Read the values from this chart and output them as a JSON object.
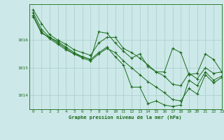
{
  "background_color": "#cce8e8",
  "grid_color": "#aacccc",
  "line_color": "#1a6b1a",
  "marker_color": "#1a6b1a",
  "title": "Graphe pression niveau de la mer (hPa)",
  "xlim": [
    -0.5,
    23
  ],
  "ylim": [
    1013.5,
    1017.3
  ],
  "yticks": [
    1014,
    1015,
    1016
  ],
  "xticks": [
    0,
    1,
    2,
    3,
    4,
    5,
    6,
    7,
    8,
    9,
    10,
    11,
    12,
    13,
    14,
    15,
    16,
    17,
    18,
    19,
    20,
    21,
    22,
    23
  ],
  "series": [
    [
      1017.1,
      1016.6,
      1016.2,
      1016.0,
      1015.85,
      1015.65,
      1015.55,
      1015.45,
      1015.9,
      1016.1,
      1016.1,
      1015.7,
      1015.55,
      1015.35,
      1015.1,
      1014.85,
      1014.7,
      1014.4,
      1014.35,
      1014.8,
      1014.6,
      1015.0,
      1014.8,
      1014.85
    ],
    [
      1017.0,
      1016.4,
      1016.1,
      1015.95,
      1015.75,
      1015.55,
      1015.4,
      1015.3,
      1016.3,
      1016.25,
      1015.9,
      1015.6,
      1015.35,
      1015.5,
      1015.05,
      1014.85,
      1014.85,
      1015.7,
      1015.55,
      1014.75,
      1014.8,
      1015.5,
      1015.3,
      1014.85
    ],
    [
      1016.9,
      1016.3,
      1016.05,
      1015.85,
      1015.65,
      1015.5,
      1015.35,
      1015.25,
      1015.5,
      1015.7,
      1015.55,
      1015.25,
      1015.0,
      1014.75,
      1014.5,
      1014.3,
      1014.1,
      1013.85,
      1013.8,
      1014.25,
      1014.05,
      1014.75,
      1014.45,
      1014.65
    ],
    [
      1016.85,
      1016.25,
      1016.1,
      1015.9,
      1015.7,
      1015.5,
      1015.4,
      1015.3,
      1015.55,
      1015.75,
      1015.4,
      1015.1,
      1014.3,
      1014.3,
      1013.7,
      1013.8,
      1013.65,
      1013.6,
      1013.65,
      1014.55,
      1014.35,
      1014.85,
      1014.55,
      1014.7
    ]
  ]
}
